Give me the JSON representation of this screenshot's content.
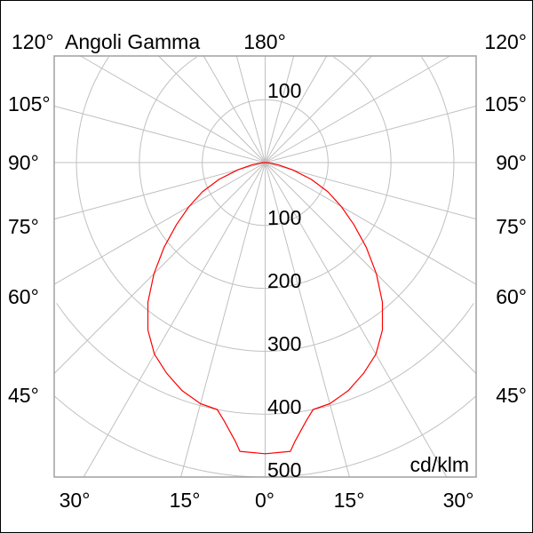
{
  "chart_data": {
    "type": "polar",
    "title": "Angoli Gamma",
    "unit_label": "cd/klm",
    "top_angle_label": "180°",
    "left_angle_labels": [
      "120°",
      "105°",
      "90°",
      "75°",
      "60°",
      "45°"
    ],
    "right_angle_labels": [
      "120°",
      "105°",
      "90°",
      "75°",
      "60°",
      "45°"
    ],
    "bottom_angle_labels": [
      "30°",
      "15°",
      "0°",
      "15°",
      "30°"
    ],
    "radial_labels_up": [
      "100"
    ],
    "radial_labels_down": [
      "100",
      "200",
      "300",
      "400",
      "500"
    ],
    "ring_values": [
      100,
      200,
      300,
      400,
      500,
      600
    ],
    "spoke_step_deg": 15,
    "grid": true,
    "curve_color": "#ff0000",
    "grid_color": "#c0c0c0",
    "series": [
      {
        "gamma": [
          0,
          5,
          6,
          9,
          11,
          15,
          20,
          25,
          30,
          35,
          40,
          45,
          50,
          55,
          60,
          65,
          70,
          75,
          80,
          85,
          90
        ],
        "values": [
          463,
          461,
          447,
          416,
          400,
          397,
          386,
          370,
          352,
          325,
          290,
          250,
          210,
          172,
          140,
          110,
          78,
          45,
          22,
          7,
          0
        ],
        "symmetric": true
      }
    ]
  }
}
